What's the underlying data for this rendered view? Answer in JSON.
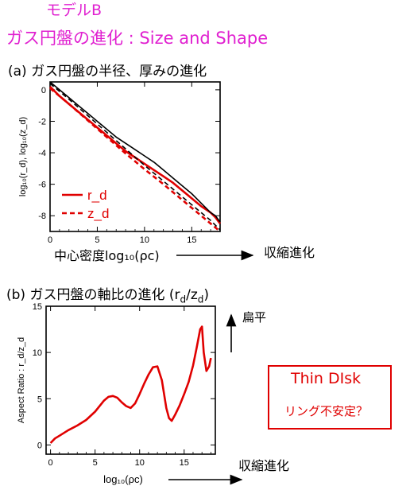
{
  "model_label": "モデルB",
  "page_title": "ガス円盤の進化 : Size and Shape",
  "panel_a": {
    "title": "(a) ガス円盤の半径、厚みの進化",
    "arrow_label": "収縮進化"
  },
  "panel_b": {
    "title": "(b) ガス円盤の軸比の進化 (r",
    "title_sub1": "d",
    "title_mid": "/z",
    "title_sub2": "d",
    "title_end": ")",
    "arrow_label": "収縮進化",
    "flatten_label": "扁平"
  },
  "callout": {
    "title": "Thin DIsk",
    "note": "リング不安定？",
    "color": "#e00000"
  },
  "colors": {
    "title": "#e020d0",
    "red": "#e00000",
    "black": "#000000"
  },
  "chart_data": [
    {
      "type": "line",
      "xlabel": "中心密度log₁₀(ρc)",
      "ylabel": "log₁₀(r_d), log₁₀(z_d)",
      "xlim": [
        0,
        18
      ],
      "ylim": [
        -9,
        0.5
      ],
      "xticks": [
        0,
        5,
        10,
        15
      ],
      "yticks": [
        0,
        -2,
        -4,
        -6,
        -8
      ],
      "legend": {
        "position": "lower-left",
        "entries": [
          "r_d",
          "z_d"
        ]
      },
      "series": [
        {
          "name": "r_d",
          "color": "#e00000",
          "style": "solid",
          "x": [
            0,
            1,
            2,
            3,
            4,
            5,
            6,
            7,
            8,
            9,
            10,
            11,
            12,
            13,
            14,
            15,
            16,
            16.5,
            17,
            17.5,
            18
          ],
          "y": [
            0.2,
            -0.4,
            -0.9,
            -1.4,
            -1.9,
            -2.4,
            -2.9,
            -3.4,
            -3.9,
            -4.3,
            -4.7,
            -5.1,
            -5.5,
            -5.9,
            -6.4,
            -6.9,
            -7.4,
            -7.6,
            -7.8,
            -8.1,
            -8.5
          ]
        },
        {
          "name": "z_d",
          "color": "#e00000",
          "style": "dashed",
          "x": [
            0,
            2,
            4,
            6,
            8,
            10,
            12,
            14,
            16,
            17,
            18
          ],
          "y": [
            0.1,
            -0.9,
            -1.95,
            -3.0,
            -4.05,
            -5.05,
            -6.0,
            -7.0,
            -8.0,
            -8.5,
            -9.0
          ]
        },
        {
          "name": "",
          "color": "#000000",
          "style": "solid",
          "x": [
            0,
            1,
            2,
            3,
            4,
            5,
            6,
            7,
            8,
            9,
            10,
            11,
            12,
            13,
            14,
            15,
            16,
            17,
            17.5,
            18
          ],
          "y": [
            0.5,
            0.0,
            -0.5,
            -1.0,
            -1.5,
            -2.0,
            -2.5,
            -3.0,
            -3.4,
            -3.8,
            -4.2,
            -4.6,
            -5.1,
            -5.6,
            -6.1,
            -6.6,
            -7.2,
            -7.8,
            -8.0,
            -8.4
          ]
        },
        {
          "name": "",
          "color": "#000000",
          "style": "dashed",
          "x": [
            0,
            2,
            4,
            6,
            8,
            10,
            12,
            14,
            16,
            17,
            18
          ],
          "y": [
            0.4,
            -0.6,
            -1.65,
            -2.7,
            -3.75,
            -4.8,
            -5.8,
            -6.8,
            -7.8,
            -8.3,
            -8.9
          ]
        }
      ]
    },
    {
      "type": "line",
      "xlabel": "log₁₀(ρc)",
      "ylabel": "Aspect Ratio : r_d/z_d",
      "xlim": [
        -0.5,
        18.5
      ],
      "ylim": [
        -1,
        15
      ],
      "xticks": [
        0,
        5,
        10,
        15
      ],
      "yticks": [
        0,
        5,
        10,
        15
      ],
      "series": [
        {
          "name": "",
          "color": "#e00000",
          "style": "solid",
          "x": [
            0,
            0.5,
            1,
            2,
            3,
            4,
            5,
            6,
            6.5,
            7,
            7.5,
            8,
            8.5,
            9,
            9.5,
            10,
            10.5,
            11,
            11.5,
            12,
            12.5,
            13,
            13.3,
            13.6,
            14,
            14.5,
            15,
            15.5,
            16,
            16.4,
            16.8,
            17.0,
            17.2,
            17.5,
            17.8,
            18
          ],
          "y": [
            0.2,
            0.7,
            1.0,
            1.6,
            2.1,
            2.7,
            3.6,
            4.8,
            5.2,
            5.3,
            5.1,
            4.6,
            4.2,
            4.0,
            4.5,
            5.5,
            6.6,
            7.6,
            8.4,
            8.5,
            7.0,
            4.0,
            2.9,
            2.6,
            3.3,
            4.3,
            5.5,
            6.8,
            8.6,
            10.5,
            12.5,
            12.8,
            10.0,
            8.0,
            8.5,
            9.4
          ]
        }
      ]
    }
  ]
}
